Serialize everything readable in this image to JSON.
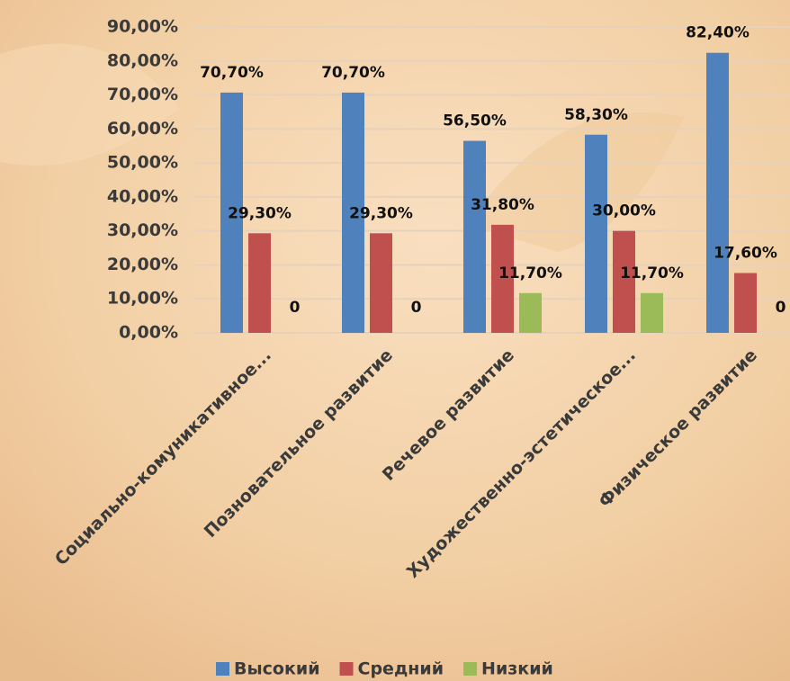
{
  "chart_data": {
    "type": "bar",
    "categories": [
      "Социально-комуникативное...",
      "Позновательное развитие",
      "Речевое развитие",
      "Художественно-эстетическое...",
      "Физическое развитие"
    ],
    "series": [
      {
        "name": "Высокий",
        "color": "#4f81bd",
        "values": [
          70.7,
          70.7,
          56.5,
          58.3,
          82.4
        ],
        "value_labels": [
          "70,70%",
          "70,70%",
          "56,50%",
          "58,30%",
          "82,40%"
        ]
      },
      {
        "name": "Средний",
        "color": "#c0504d",
        "values": [
          29.3,
          29.3,
          31.8,
          30.0,
          17.6
        ],
        "value_labels": [
          "29,30%",
          "29,30%",
          "31,80%",
          "30,00%",
          "17,60%"
        ]
      },
      {
        "name": "Низкий",
        "color": "#9bbb59",
        "values": [
          0,
          0,
          11.7,
          11.7,
          0
        ],
        "value_labels": [
          "0",
          "0",
          "11,70%",
          "11,70%",
          "0"
        ]
      }
    ],
    "ylim": [
      0,
      90
    ],
    "yticks": [
      {
        "value": 0,
        "label": "0,00%"
      },
      {
        "value": 10,
        "label": "10,00%"
      },
      {
        "value": 20,
        "label": "20,00%"
      },
      {
        "value": 30,
        "label": "30,00%"
      },
      {
        "value": 40,
        "label": "40,00%"
      },
      {
        "value": 50,
        "label": "50,00%"
      },
      {
        "value": 60,
        "label": "60,00%"
      },
      {
        "value": 70,
        "label": "70,00%"
      },
      {
        "value": 80,
        "label": "80,00%"
      },
      {
        "value": 90,
        "label": "90,00%"
      }
    ],
    "grid": true,
    "legend": "bottom"
  }
}
